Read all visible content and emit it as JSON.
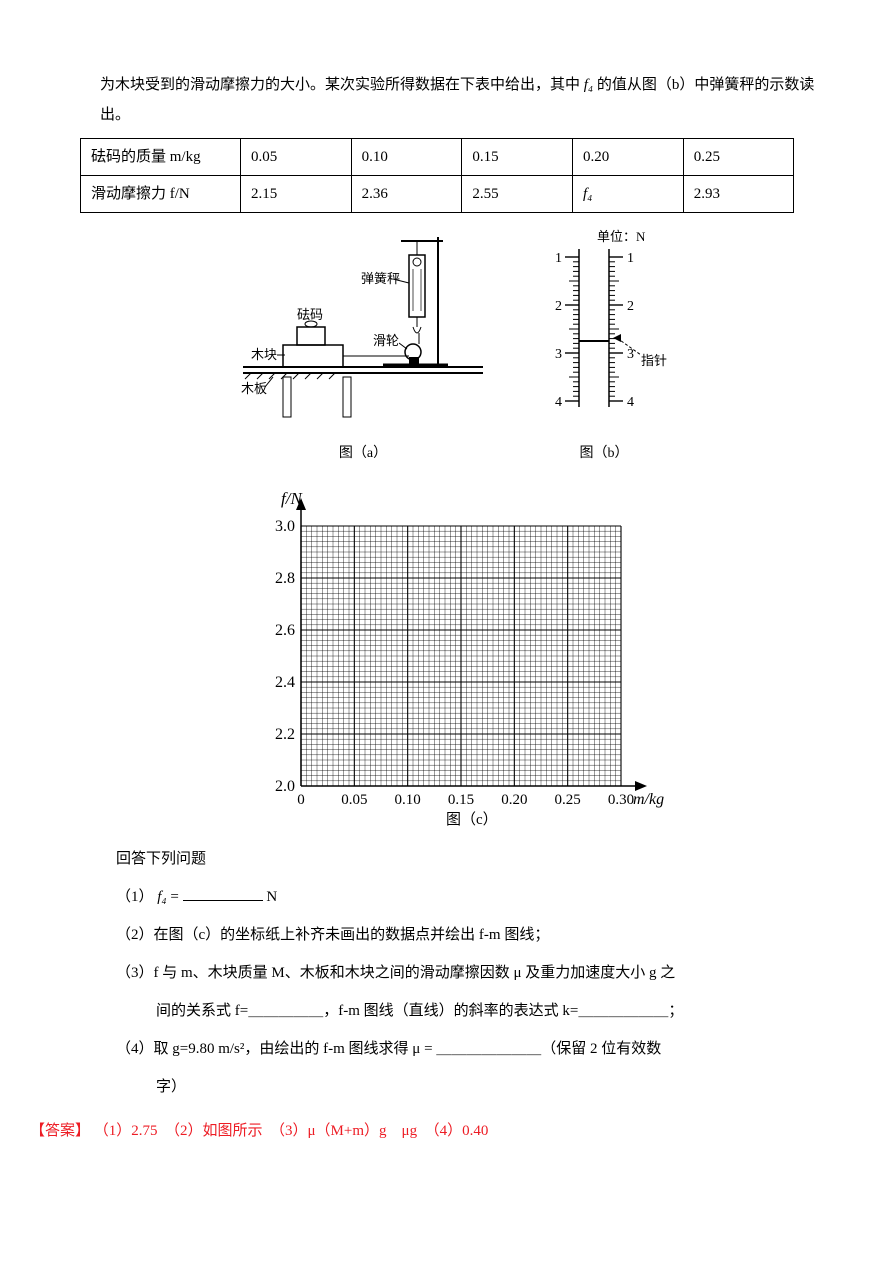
{
  "intro": {
    "line": "为木块受到的滑动摩擦力的大小。某次实验所得数据在下表中给出，其中",
    "f4": "f₄",
    "rest": "的值从图（b）中弹簧秤的示数读出。"
  },
  "table": {
    "r1_label": "砝码的质量 m/kg",
    "r1": [
      "0.05",
      "0.10",
      "0.15",
      "0.20",
      "0.25"
    ],
    "r2_label": "滑动摩擦力 f/N",
    "r2": [
      "2.15",
      "2.36",
      "2.55",
      "f₄",
      "2.93"
    ]
  },
  "figA": {
    "labels": {
      "spring": "弹簧秤",
      "weight": "砝码",
      "block": "木块",
      "board": "木板",
      "pulley": "滑轮"
    },
    "caption": "图（a）"
  },
  "figB": {
    "unit": "单位：N",
    "ticks": [
      "1",
      "2",
      "3",
      "4"
    ],
    "pointer": "指针",
    "pointer_at": 2.75,
    "caption": "图（b）"
  },
  "chart": {
    "y_label": "f/N",
    "x_label": "m/kg",
    "x_ticks": [
      "0",
      "0.05",
      "0.10",
      "0.15",
      "0.20",
      "0.25",
      "0.30"
    ],
    "y_ticks": [
      "2.0",
      "2.2",
      "2.4",
      "2.6",
      "2.8",
      "3.0"
    ],
    "x_range": [
      0,
      0.3
    ],
    "y_range": [
      2.0,
      3.0
    ],
    "caption": "图（c）",
    "grid_major_color": "#000000",
    "grid_minor_color": "#000000",
    "minor_per_major": 10,
    "background_color": "#ffffff"
  },
  "questions": {
    "header": "回答下列问题",
    "q1_pre": "（1）",
    "q1_f4": "f₄",
    "q1_eq": " = ",
    "q1_unit": "N",
    "q2": "（2）在图（c）的坐标纸上补齐未画出的数据点并绘出 f-m 图线；",
    "q3a": "（3）f 与 m、木块质量 M、木板和木块之间的滑动摩擦因数 μ 及重力加速度大小 g 之",
    "q3b": "间的关系式 f=＿＿＿＿＿，f-m 图线（直线）的斜率的表达式 k=＿＿＿＿＿＿；",
    "q4a": "（4）取 g=9.80 m/s²，由绘出的 f-m 图线求得 μ = ＿＿＿＿＿＿＿（保留 2 位有效数",
    "q4b": "字）"
  },
  "answer": {
    "label": "【答案】",
    "body": "（1）2.75　（2）如图所示　（3）μ（M+m）g　μg　（4）0.40"
  }
}
